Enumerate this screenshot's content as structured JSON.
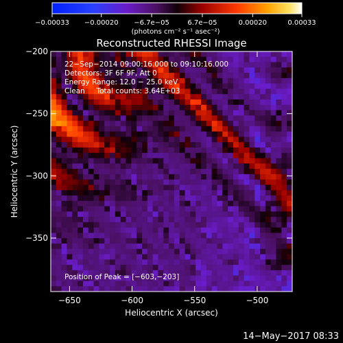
{
  "chart_data": {
    "type": "heatmap",
    "title": "Reconstructed RHESSI Image",
    "xlabel": "Heliocentric X (arcsec)",
    "ylabel": "Heliocentric Y (arcsec)",
    "xlim": [
      -665,
      -472
    ],
    "ylim": [
      -393,
      -200
    ],
    "x_ticks": [
      -650,
      -600,
      -550,
      -500
    ],
    "x_tick_labels": [
      "−650",
      "−600",
      "−550",
      "−500"
    ],
    "y_ticks": [
      -200,
      -250,
      -300,
      -350
    ],
    "y_tick_labels": [
      "−200",
      "−250",
      "−300",
      "−350"
    ],
    "colorbar": {
      "range": [
        -0.00033,
        0.00033
      ],
      "ticks": [
        -0.00033,
        -0.0002,
        -6.7e-05,
        6.7e-05,
        0.0002,
        0.00033
      ],
      "tick_labels": [
        "−0.00033",
        "−0.00020",
        "−6.7e−05",
        "6.7e−05",
        "0.00020",
        "0.00033"
      ],
      "unit_label": "(photons cm⁻² s⁻¹ asec⁻²)"
    },
    "annotations": [
      "22−Sep−2014 09:00:16.000 to 09:10:16.000",
      "Detectors: 3F 6F 9F, Att 0",
      "Energy Range: 12.0 − 25.0 keV",
      "Clean     Total counts: 3.64E+03"
    ],
    "peak_label": "Position of Peak = [−603,−203]",
    "peak_position": [
      -603,
      -203
    ]
  },
  "timestamp": "14−May−2017 08:33",
  "colors": {
    "background": "#000000",
    "text": "#ffffff",
    "frame": "#ffffff"
  }
}
